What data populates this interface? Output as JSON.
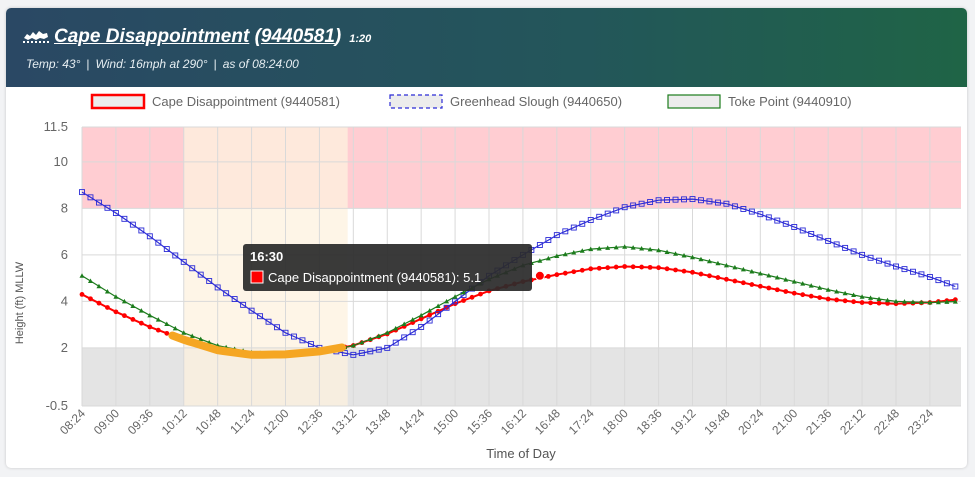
{
  "header": {
    "station_name": "Cape Disappointment",
    "station_id": "9440581",
    "scale_note": "1:20",
    "temp": "Temp: 43°",
    "wind": "Wind: 16mph at 290°",
    "as_of": "as of 08:24:00"
  },
  "tooltip": {
    "time": "16:30",
    "label": "Cape Disappointment (9440581): 5.1"
  },
  "chart_data": {
    "type": "line",
    "xlabel": "Time of Day",
    "ylabel": "Height (ft) MLLW",
    "x_ticks": [
      "08:24",
      "09:00",
      "09:36",
      "10:12",
      "10:48",
      "11:24",
      "12:00",
      "12:36",
      "13:12",
      "13:48",
      "14:24",
      "15:00",
      "15:36",
      "16:12",
      "16:48",
      "17:24",
      "18:00",
      "18:36",
      "19:12",
      "19:48",
      "20:24",
      "21:00",
      "21:36",
      "22:12",
      "22:48",
      "23:24"
    ],
    "x_range_hours": [
      8.4,
      23.95
    ],
    "y_ticks": [
      -0.5,
      2,
      4,
      6,
      8,
      10,
      11.5
    ],
    "ylim": [
      -0.5,
      11.5
    ],
    "grid": true,
    "legend_position": "top",
    "bands": [
      {
        "from": 8,
        "to": 11.5,
        "color": "#ffcdd2"
      },
      {
        "from": 2,
        "to": 8,
        "color": "#ffffff"
      },
      {
        "from": -0.5,
        "to": 2,
        "color": "#e4e4e4"
      }
    ],
    "highlight_window_hours": [
      10.2,
      13.1
    ],
    "series": [
      {
        "name": "Cape Disappointment (9440581)",
        "color": "#ff0000",
        "points": [
          [
            8.4,
            4.3
          ],
          [
            9.0,
            3.55
          ],
          [
            9.6,
            2.9
          ],
          [
            10.2,
            2.35
          ],
          [
            10.8,
            1.9
          ],
          [
            11.4,
            1.7
          ],
          [
            12.0,
            1.72
          ],
          [
            12.6,
            1.85
          ],
          [
            13.2,
            2.1
          ],
          [
            13.8,
            2.6
          ],
          [
            14.4,
            3.25
          ],
          [
            15.0,
            3.9
          ],
          [
            15.6,
            4.45
          ],
          [
            16.2,
            4.85
          ],
          [
            16.8,
            5.15
          ],
          [
            17.4,
            5.4
          ],
          [
            18.0,
            5.5
          ],
          [
            18.6,
            5.45
          ],
          [
            19.2,
            5.25
          ],
          [
            19.8,
            4.95
          ],
          [
            20.4,
            4.65
          ],
          [
            21.0,
            4.35
          ],
          [
            21.6,
            4.1
          ],
          [
            22.2,
            3.95
          ],
          [
            22.8,
            3.9
          ],
          [
            23.4,
            3.95
          ],
          [
            23.95,
            4.1
          ]
        ]
      },
      {
        "name": "Greenhead Slough (9440650)",
        "color": "#2b2bd6",
        "points": [
          [
            8.4,
            8.7
          ],
          [
            9.0,
            7.8
          ],
          [
            9.6,
            6.8
          ],
          [
            10.2,
            5.7
          ],
          [
            10.8,
            4.6
          ],
          [
            11.4,
            3.6
          ],
          [
            12.0,
            2.65
          ],
          [
            12.6,
            2.0
          ],
          [
            13.2,
            1.7
          ],
          [
            13.8,
            2.0
          ],
          [
            14.4,
            2.9
          ],
          [
            15.0,
            4.0
          ],
          [
            15.6,
            5.1
          ],
          [
            16.2,
            6.0
          ],
          [
            16.8,
            6.85
          ],
          [
            17.4,
            7.5
          ],
          [
            18.0,
            8.05
          ],
          [
            18.6,
            8.35
          ],
          [
            19.2,
            8.4
          ],
          [
            19.8,
            8.2
          ],
          [
            20.4,
            7.75
          ],
          [
            21.0,
            7.2
          ],
          [
            21.6,
            6.6
          ],
          [
            22.2,
            6.0
          ],
          [
            22.8,
            5.5
          ],
          [
            23.4,
            5.05
          ],
          [
            23.95,
            4.55
          ]
        ]
      },
      {
        "name": "Toke Point (9440910)",
        "color": "#1c7c1c",
        "points": [
          [
            8.4,
            5.1
          ],
          [
            9.0,
            4.2
          ],
          [
            9.6,
            3.4
          ],
          [
            10.2,
            2.65
          ],
          [
            10.8,
            2.1
          ],
          [
            11.4,
            1.8
          ],
          [
            12.0,
            1.72
          ],
          [
            12.6,
            1.8
          ],
          [
            13.2,
            2.1
          ],
          [
            13.8,
            2.65
          ],
          [
            14.4,
            3.4
          ],
          [
            15.0,
            4.2
          ],
          [
            15.6,
            4.95
          ],
          [
            16.2,
            5.55
          ],
          [
            16.8,
            5.95
          ],
          [
            17.4,
            6.25
          ],
          [
            18.0,
            6.35
          ],
          [
            18.6,
            6.2
          ],
          [
            19.2,
            5.9
          ],
          [
            19.8,
            5.55
          ],
          [
            20.4,
            5.2
          ],
          [
            21.0,
            4.85
          ],
          [
            21.6,
            4.5
          ],
          [
            22.2,
            4.2
          ],
          [
            22.8,
            4.0
          ],
          [
            23.4,
            3.95
          ],
          [
            23.95,
            4.0
          ]
        ]
      }
    ],
    "highlight_segment": {
      "series": "Cape Disappointment (9440581)",
      "from_hour": 10.0,
      "to_hour": 13.0,
      "color": "#f5a623"
    },
    "tooltip_point": {
      "hour": 16.5,
      "value": 5.1
    }
  }
}
